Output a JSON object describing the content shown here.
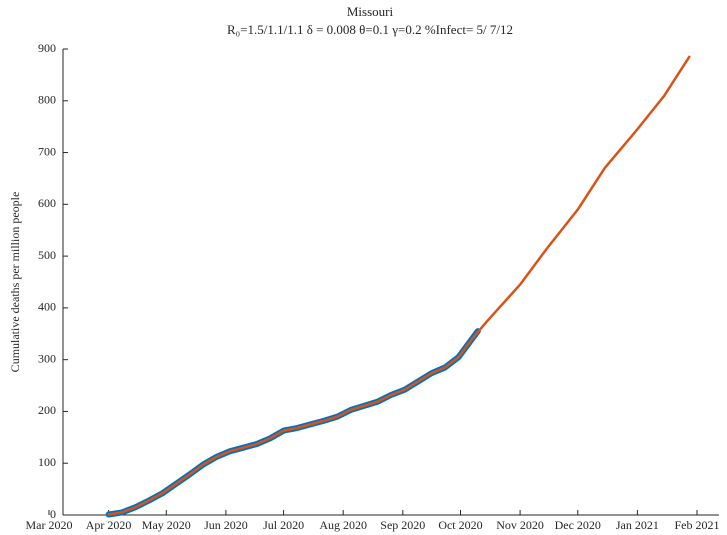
{
  "chart_data": {
    "type": "line",
    "title": "Missouri",
    "subtitle": "R₀=1.5/1.1/1.1  δ = 0.008  θ=0.1  γ=0.2  %Infect= 5/ 7/12",
    "y_label": "Cumulative deaths per million people",
    "xlim": [
      "2020-03-01",
      "2021-02-01"
    ],
    "xticks": [
      {
        "value": "2020-03-01",
        "label": "Mar 2020"
      },
      {
        "value": "2020-04-01",
        "label": "Apr 2020"
      },
      {
        "value": "2020-05-01",
        "label": "May 2020"
      },
      {
        "value": "2020-06-01",
        "label": "Jun 2020"
      },
      {
        "value": "2020-07-01",
        "label": "Jul 2020"
      },
      {
        "value": "2020-08-01",
        "label": "Aug 2020"
      },
      {
        "value": "2020-09-01",
        "label": "Sep 2020"
      },
      {
        "value": "2020-10-01",
        "label": "Oct 2020"
      },
      {
        "value": "2020-11-01",
        "label": "Nov 2020"
      },
      {
        "value": "2020-12-01",
        "label": "Dec 2020"
      },
      {
        "value": "2021-01-01",
        "label": "Jan 2021"
      },
      {
        "value": "2021-02-01",
        "label": "Feb 2021"
      }
    ],
    "ylim": [
      0,
      900
    ],
    "yticks": [
      0,
      100,
      200,
      300,
      400,
      500,
      600,
      700,
      800,
      900
    ],
    "series": [
      {
        "color": "#0072bd",
        "x": [
          "2020-04-01",
          "2020-04-08",
          "2020-04-15",
          "2020-04-22",
          "2020-04-29",
          "2020-05-06",
          "2020-05-13",
          "2020-05-20",
          "2020-05-27",
          "2020-06-03",
          "2020-06-10",
          "2020-06-17",
          "2020-06-24",
          "2020-07-01",
          "2020-07-08",
          "2020-07-15",
          "2020-07-22",
          "2020-07-29",
          "2020-08-05",
          "2020-08-12",
          "2020-08-19",
          "2020-08-26",
          "2020-09-02",
          "2020-09-09",
          "2020-09-16",
          "2020-09-23",
          "2020-09-30",
          "2020-10-07",
          "2020-10-10"
        ],
        "values": [
          1,
          5,
          15,
          28,
          42,
          60,
          78,
          97,
          112,
          123,
          130,
          137,
          148,
          163,
          168,
          175,
          182,
          190,
          203,
          211,
          219,
          232,
          242,
          258,
          274,
          285,
          305,
          340,
          355
        ]
      },
      {
        "color": "#d95319",
        "x": [
          "2020-04-01",
          "2020-04-08",
          "2020-04-15",
          "2020-04-22",
          "2020-04-29",
          "2020-05-06",
          "2020-05-13",
          "2020-05-20",
          "2020-05-27",
          "2020-06-03",
          "2020-06-10",
          "2020-06-17",
          "2020-06-24",
          "2020-07-01",
          "2020-07-08",
          "2020-07-15",
          "2020-07-22",
          "2020-07-29",
          "2020-08-05",
          "2020-08-12",
          "2020-08-19",
          "2020-08-26",
          "2020-09-02",
          "2020-09-09",
          "2020-09-16",
          "2020-09-23",
          "2020-09-30",
          "2020-10-07",
          "2020-10-15",
          "2020-11-01",
          "2020-11-15",
          "2020-12-01",
          "2020-12-15",
          "2021-01-01",
          "2021-01-15",
          "2021-01-28"
        ],
        "values": [
          1,
          5,
          15,
          28,
          42,
          60,
          78,
          97,
          112,
          123,
          130,
          137,
          148,
          163,
          168,
          175,
          182,
          190,
          203,
          211,
          219,
          232,
          242,
          258,
          274,
          285,
          305,
          340,
          375,
          445,
          515,
          590,
          670,
          745,
          810,
          885
        ]
      }
    ]
  }
}
